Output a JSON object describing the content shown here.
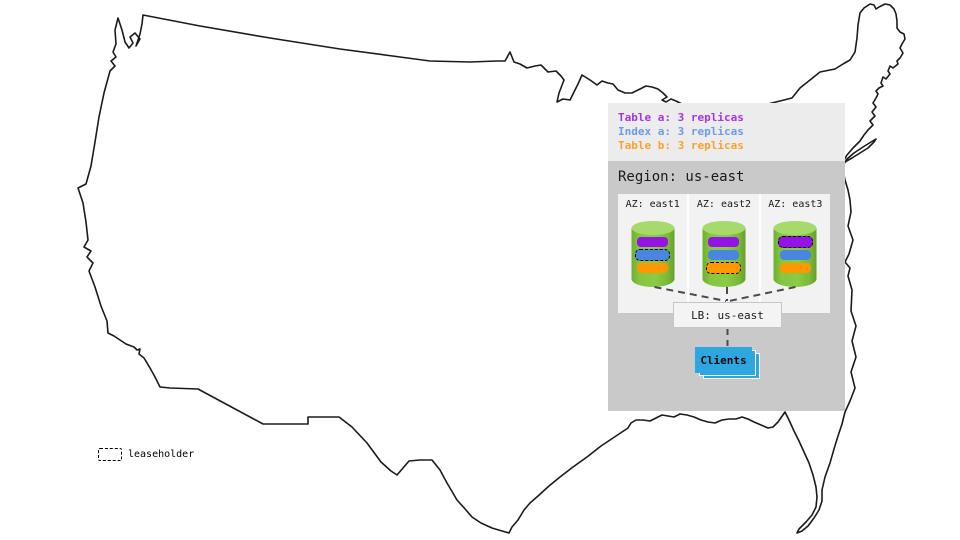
{
  "colors": {
    "table_a": "#9414E6",
    "index_a": "#4A86E0",
    "table_b": "#FF9800",
    "legend_table_a_text": "#A335DF",
    "legend_index_a_text": "#6B9BEB",
    "legend_table_b_text": "#F9A12E",
    "cylinder_green": "#85C640",
    "clients_blue": "#2EA6E0",
    "region_bg": "#C9C9C9",
    "legend_bg": "#ECECEC"
  },
  "legend": {
    "items": [
      {
        "label": "Table a: 3 replicas",
        "color_key": "legend_table_a_text"
      },
      {
        "label": "Index a: 3 replicas",
        "color_key": "legend_index_a_text"
      },
      {
        "label": "Table b: 3 replicas",
        "color_key": "legend_table_b_text"
      }
    ]
  },
  "region": {
    "label": "Region: us-east",
    "azs": [
      {
        "label": "AZ: east1",
        "replicas": [
          {
            "type": "table_a",
            "leaseholder": false
          },
          {
            "type": "index_a",
            "leaseholder": true
          },
          {
            "type": "table_b",
            "leaseholder": false
          }
        ]
      },
      {
        "label": "AZ: east2",
        "replicas": [
          {
            "type": "table_a",
            "leaseholder": false
          },
          {
            "type": "index_a",
            "leaseholder": false
          },
          {
            "type": "table_b",
            "leaseholder": true
          }
        ]
      },
      {
        "label": "AZ: east3",
        "replicas": [
          {
            "type": "table_a",
            "leaseholder": true
          },
          {
            "type": "index_a",
            "leaseholder": false
          },
          {
            "type": "table_b",
            "leaseholder": false
          }
        ]
      }
    ]
  },
  "load_balancer": {
    "label": "LB: us-east"
  },
  "clients": {
    "label": "Clients"
  },
  "map_key": {
    "leaseholder_label": "leaseholder"
  }
}
